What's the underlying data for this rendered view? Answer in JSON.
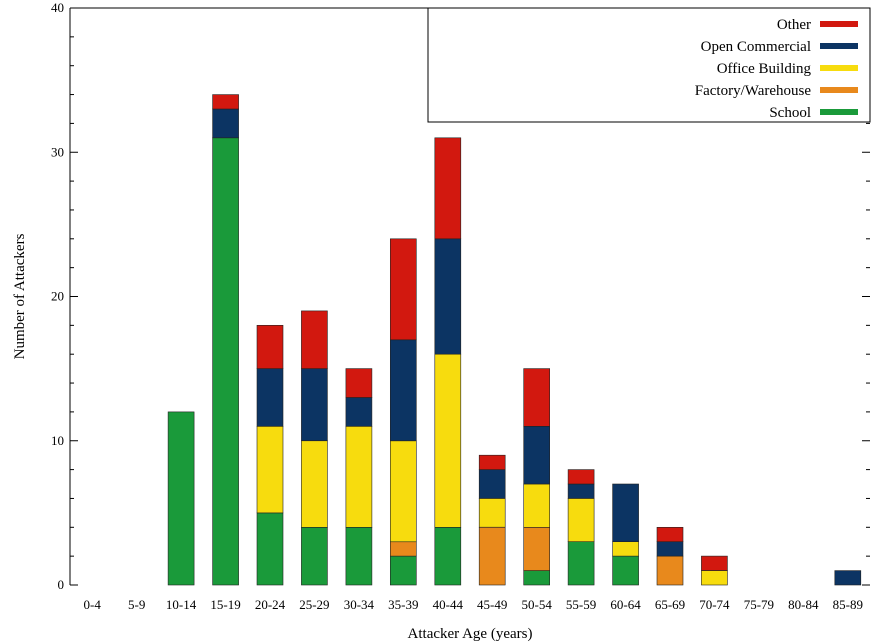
{
  "chart_data": {
    "type": "bar",
    "stacked": true,
    "title": "",
    "xlabel": "Attacker Age (years)",
    "ylabel": "Number of Attackers",
    "ylim": [
      0,
      40
    ],
    "yticks": [
      0,
      10,
      20,
      30,
      40
    ],
    "grid": false,
    "legend_position": "top-right",
    "categories": [
      "0-4",
      "5-9",
      "10-14",
      "15-19",
      "20-24",
      "25-29",
      "30-34",
      "35-39",
      "40-44",
      "45-49",
      "50-54",
      "55-59",
      "60-64",
      "65-69",
      "70-74",
      "75-79",
      "80-84",
      "85-89"
    ],
    "series": [
      {
        "name": "School",
        "color": "#1a9a3a",
        "values": [
          0,
          0,
          12,
          31,
          5,
          4,
          4,
          2,
          4,
          0,
          1,
          3,
          2,
          0,
          0,
          0,
          0,
          0
        ]
      },
      {
        "name": "Factory/Warehouse",
        "color": "#e8891c",
        "values": [
          0,
          0,
          0,
          0,
          0,
          0,
          0,
          1,
          0,
          4,
          3,
          0,
          0,
          2,
          0,
          0,
          0,
          0
        ]
      },
      {
        "name": "Office Building",
        "color": "#f7dc0e",
        "values": [
          0,
          0,
          0,
          0,
          6,
          6,
          7,
          7,
          12,
          2,
          3,
          3,
          1,
          0,
          1,
          0,
          0,
          0
        ]
      },
      {
        "name": "Open Commercial",
        "color": "#0c3463",
        "values": [
          0,
          0,
          0,
          2,
          4,
          5,
          2,
          7,
          8,
          2,
          4,
          1,
          4,
          1,
          0,
          0,
          0,
          1
        ]
      },
      {
        "name": "Other",
        "color": "#d2180f",
        "values": [
          0,
          0,
          0,
          1,
          3,
          4,
          2,
          7,
          7,
          1,
          4,
          1,
          0,
          1,
          1,
          0,
          0,
          0
        ]
      }
    ],
    "legend_order": [
      "Other",
      "Open Commercial",
      "Office Building",
      "Factory/Warehouse",
      "School"
    ]
  }
}
